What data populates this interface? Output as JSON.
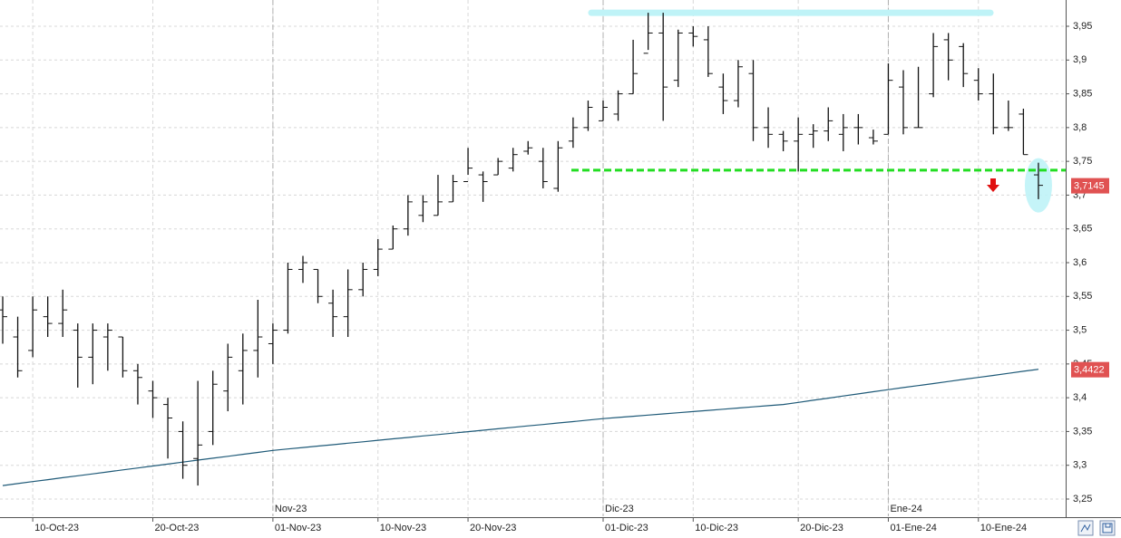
{
  "chart_data": {
    "type": "ohlc",
    "categories": [
      null,
      null,
      "10-Oct-23",
      null,
      null,
      null,
      null,
      null,
      null,
      null,
      "20-Oct-23",
      null,
      null,
      null,
      null,
      null,
      null,
      null,
      "01-Nov-23",
      null,
      null,
      null,
      null,
      null,
      null,
      "10-Nov-23",
      null,
      null,
      null,
      null,
      null,
      "20-Nov-23",
      null,
      null,
      null,
      null,
      null,
      null,
      null,
      null,
      "01-Dic-23",
      null,
      null,
      null,
      null,
      null,
      "10-Dic-23",
      null,
      null,
      null,
      null,
      null,
      null,
      "20-Dic-23",
      null,
      null,
      null,
      null,
      null,
      "01-Ene-24",
      null,
      null,
      null,
      null,
      null,
      "10-Ene-24",
      null,
      null,
      null,
      null
    ],
    "month_labels": [
      null,
      null,
      null,
      null,
      null,
      null,
      null,
      null,
      null,
      null,
      null,
      null,
      null,
      null,
      null,
      null,
      null,
      null,
      "Nov-23",
      null,
      null,
      null,
      null,
      null,
      null,
      null,
      null,
      null,
      null,
      null,
      null,
      null,
      null,
      null,
      null,
      null,
      null,
      null,
      null,
      null,
      "Dic-23",
      null,
      null,
      null,
      null,
      null,
      null,
      null,
      null,
      null,
      null,
      null,
      null,
      null,
      null,
      null,
      null,
      null,
      null,
      "Ene-24",
      null,
      null,
      null,
      null,
      null,
      null,
      null,
      null,
      null,
      null
    ],
    "ohlc": {
      "color": "#111111",
      "open": [
        3.53,
        3.49,
        3.47,
        3.52,
        3.51,
        3.5,
        3.46,
        3.49,
        3.49,
        3.44,
        3.41,
        3.39,
        3.35,
        3.31,
        3.35,
        3.41,
        3.44,
        3.47,
        3.48,
        3.5,
        3.59,
        3.59,
        3.54,
        3.52,
        3.56,
        3.59,
        3.62,
        3.65,
        3.67,
        3.67,
        3.69,
        3.72,
        3.73,
        3.73,
        3.74,
        3.765,
        3.75,
        3.71,
        3.78,
        3.8,
        3.81,
        3.82,
        3.85,
        3.91,
        3.94,
        3.87,
        3.94,
        3.93,
        3.86,
        3.84,
        3.88,
        3.8,
        3.79,
        3.78,
        3.79,
        3.795,
        3.79,
        3.8,
        3.785,
        3.79,
        3.86,
        3.8,
        3.85,
        3.93,
        3.92,
        3.87,
        3.85,
        3.8,
        3.82,
        3.73
      ],
      "high": [
        3.55,
        3.52,
        3.55,
        3.55,
        3.56,
        3.51,
        3.51,
        3.51,
        3.49,
        3.45,
        3.425,
        3.4,
        3.365,
        3.425,
        3.44,
        3.48,
        3.495,
        3.545,
        3.51,
        3.6,
        3.61,
        3.59,
        3.56,
        3.59,
        3.6,
        3.635,
        3.655,
        3.7,
        3.7,
        3.73,
        3.73,
        3.77,
        3.735,
        3.755,
        3.77,
        3.78,
        3.77,
        3.78,
        3.815,
        3.84,
        3.84,
        3.855,
        3.93,
        3.97,
        3.97,
        3.945,
        3.95,
        3.95,
        3.88,
        3.9,
        3.9,
        3.83,
        3.795,
        3.815,
        3.805,
        3.83,
        3.82,
        3.82,
        3.797,
        3.895,
        3.885,
        3.89,
        3.94,
        3.94,
        3.925,
        3.888,
        3.88,
        3.84,
        3.828,
        3.748
      ],
      "low": [
        3.48,
        3.43,
        3.46,
        3.49,
        3.49,
        3.415,
        3.42,
        3.44,
        3.43,
        3.39,
        3.37,
        3.31,
        3.28,
        3.27,
        3.33,
        3.38,
        3.39,
        3.43,
        3.45,
        3.495,
        3.57,
        3.54,
        3.49,
        3.49,
        3.55,
        3.58,
        3.62,
        3.64,
        3.66,
        3.67,
        3.69,
        3.73,
        3.69,
        3.73,
        3.735,
        3.76,
        3.71,
        3.705,
        3.77,
        3.795,
        3.81,
        3.81,
        3.85,
        3.915,
        3.81,
        3.86,
        3.92,
        3.875,
        3.82,
        3.83,
        3.78,
        3.77,
        3.765,
        3.735,
        3.77,
        3.78,
        3.765,
        3.775,
        3.775,
        3.79,
        3.79,
        3.8,
        3.845,
        3.87,
        3.86,
        3.84,
        3.79,
        3.795,
        3.76,
        3.694
      ],
      "close": [
        3.52,
        3.44,
        3.53,
        3.51,
        3.53,
        3.46,
        3.5,
        3.5,
        3.44,
        3.43,
        3.4,
        3.37,
        3.3,
        3.33,
        3.42,
        3.46,
        3.47,
        3.49,
        3.5,
        3.59,
        3.6,
        3.55,
        3.52,
        3.56,
        3.59,
        3.62,
        3.65,
        3.69,
        3.69,
        3.69,
        3.72,
        3.74,
        3.72,
        3.75,
        3.76,
        3.77,
        3.72,
        3.77,
        3.8,
        3.83,
        3.83,
        3.85,
        3.88,
        3.94,
        3.86,
        3.94,
        3.935,
        3.88,
        3.84,
        3.89,
        3.8,
        3.79,
        3.78,
        3.79,
        3.795,
        3.81,
        3.8,
        3.8,
        3.78,
        3.87,
        3.8,
        3.8,
        3.92,
        3.9,
        3.88,
        3.85,
        3.8,
        3.8,
        3.76,
        3.7145
      ]
    },
    "line": {
      "color": "#1f5a78",
      "values": [
        3.27,
        3.2729,
        3.2758,
        3.2787,
        3.2816,
        3.2844,
        3.2873,
        3.2902,
        3.2931,
        3.296,
        3.2989,
        3.3018,
        3.3047,
        3.3076,
        3.3104,
        3.3133,
        3.3162,
        3.3191,
        3.322,
        3.3241,
        3.3263,
        3.3284,
        3.3305,
        3.3327,
        3.3348,
        3.337,
        3.3391,
        3.3412,
        3.3434,
        3.3455,
        3.3476,
        3.3498,
        3.3519,
        3.354,
        3.3562,
        3.3583,
        3.3604,
        3.3626,
        3.3647,
        3.3669,
        3.369,
        3.3708,
        3.3725,
        3.3743,
        3.376,
        3.3778,
        3.3795,
        3.3813,
        3.383,
        3.3848,
        3.3865,
        3.3883,
        3.39,
        3.3931,
        3.3963,
        3.3994,
        3.4026,
        3.4057,
        3.4089,
        3.412,
        3.415,
        3.418,
        3.421,
        3.4241,
        3.4271,
        3.4301,
        3.4331,
        3.4361,
        3.4392,
        3.4422
      ]
    },
    "price_tags": [
      {
        "value": 3.7145,
        "label": "3,7145",
        "color": "#e05252"
      },
      {
        "value": 3.4422,
        "label": "3,4422",
        "color": "#e05252"
      }
    ],
    "support_level": {
      "value": 3.737,
      "color": "#22dd22"
    },
    "resistance_level": {
      "value": 3.97,
      "color": "#bff3f7"
    },
    "ylim": [
      3.2245,
      3.9889
    ],
    "yticks": [
      {
        "value": 3.25,
        "label": "3,25"
      },
      {
        "value": 3.3,
        "label": "3,3"
      },
      {
        "value": 3.35,
        "label": "3,35"
      },
      {
        "value": 3.4,
        "label": "3,4"
      },
      {
        "value": 3.45,
        "label": "3,45"
      },
      {
        "value": 3.5,
        "label": "3,5"
      },
      {
        "value": 3.55,
        "label": "3,55"
      },
      {
        "value": 3.6,
        "label": "3,6"
      },
      {
        "value": 3.65,
        "label": "3,65"
      },
      {
        "value": 3.7,
        "label": "3,7"
      },
      {
        "value": 3.75,
        "label": "3,75"
      },
      {
        "value": 3.8,
        "label": "3,8"
      },
      {
        "value": 3.85,
        "label": "3,85"
      },
      {
        "value": 3.9,
        "label": "3,9"
      },
      {
        "value": 3.95,
        "label": "3,95"
      }
    ],
    "grid": true
  }
}
